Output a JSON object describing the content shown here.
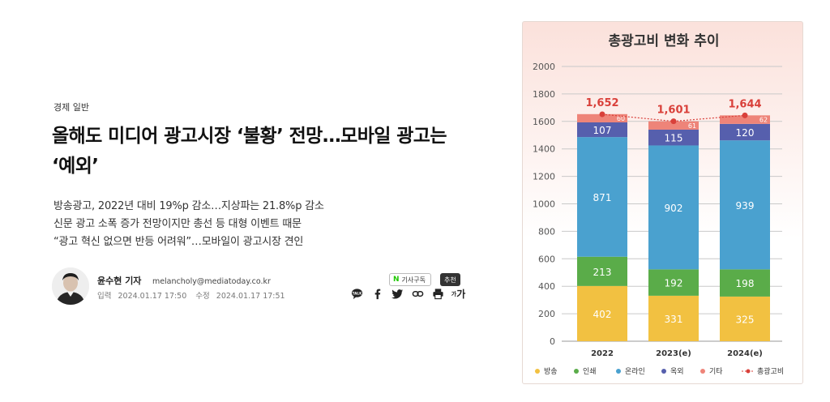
{
  "article": {
    "category": "경제 일반",
    "headline_line1": "올해도 미디어 광고시장 ‘불황’ 전망…모바일 광고는",
    "headline_line2": "‘예외’",
    "subheadlines": [
      "방송광고, 2022년 대비 19%p 감소…지상파는 21.8%p 감소",
      "신문 광고 소폭 증가 전망이지만 총선 등 대형 이벤트 때문",
      "“광고 혁신 없으면 반등 어려워”…모바일이 광고시장 견인"
    ],
    "author_name": "윤수현 기자",
    "author_email": "melancholy@mediatoday.co.kr",
    "input_label": "입력",
    "input_date": "2024.01.17 17:50",
    "edit_label": "수정",
    "edit_date": "2024.01.17 17:51"
  },
  "actions": {
    "subscribe_label": "기사구독",
    "subscribe_badge": "N",
    "recommend_label": "추천",
    "font_size_label": "가",
    "share_icons": [
      "talk-icon",
      "facebook-icon",
      "twitter-icon",
      "link-icon",
      "print-icon",
      "font-size-icon"
    ]
  },
  "colors": {
    "broadcast": "#f2c141",
    "print": "#5aac49",
    "online": "#4aa1cf",
    "outdoor": "#565fad",
    "other": "#ee8479",
    "total": "#d9403a"
  },
  "chart_data": {
    "type": "bar",
    "stacked": true,
    "title": "총광고비 변화 추이",
    "categories": [
      "2022",
      "2023(e)",
      "2024(e)"
    ],
    "series": [
      {
        "name": "방송",
        "values": [
          402,
          331,
          325
        ]
      },
      {
        "name": "인쇄",
        "values": [
          213,
          192,
          198
        ]
      },
      {
        "name": "온라인",
        "values": [
          871,
          902,
          939
        ]
      },
      {
        "name": "옥외",
        "values": [
          107,
          115,
          120
        ]
      },
      {
        "name": "기타",
        "values": [
          60,
          61,
          62
        ]
      }
    ],
    "total": {
      "name": "총광고비",
      "values": [
        1652,
        1601,
        1644
      ]
    },
    "ylim": [
      0,
      2000
    ],
    "yticks": [
      0,
      200,
      400,
      600,
      800,
      1000,
      1200,
      1400,
      1600,
      1800,
      2000
    ],
    "grid": true,
    "legend": "bottom"
  }
}
